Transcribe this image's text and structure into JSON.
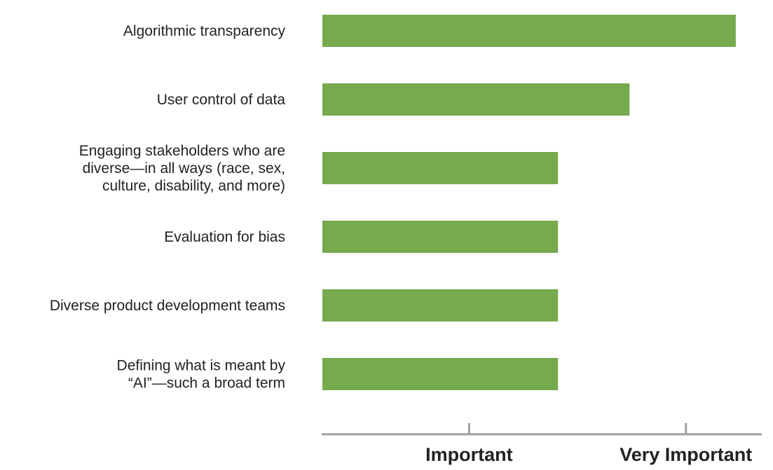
{
  "chart_data": {
    "type": "bar",
    "orientation": "horizontal",
    "categories": [
      [
        "Algorithmic transparency"
      ],
      [
        "User control of data"
      ],
      [
        "Engaging stakeholders who are",
        "diverse—in all ways (race, sex,",
        "culture, disability, and more)"
      ],
      [
        "Evaluation for bias"
      ],
      [
        "Diverse product development teams"
      ],
      [
        "Defining what is meant by",
        "“AI”—such a broad term"
      ]
    ],
    "values": [
      2.23,
      1.74,
      1.41,
      1.41,
      1.41,
      1.41
    ],
    "xlim": [
      0.32,
      2.35
    ],
    "x_ticks": [
      {
        "value": 1,
        "label": "Important"
      },
      {
        "value": 2,
        "label": "Very Important"
      }
    ],
    "bar_color": "#75AA4E",
    "axis_color": "#9E9E9E",
    "title": "",
    "xlabel": "",
    "ylabel": "",
    "grid": false,
    "legend": "none"
  }
}
